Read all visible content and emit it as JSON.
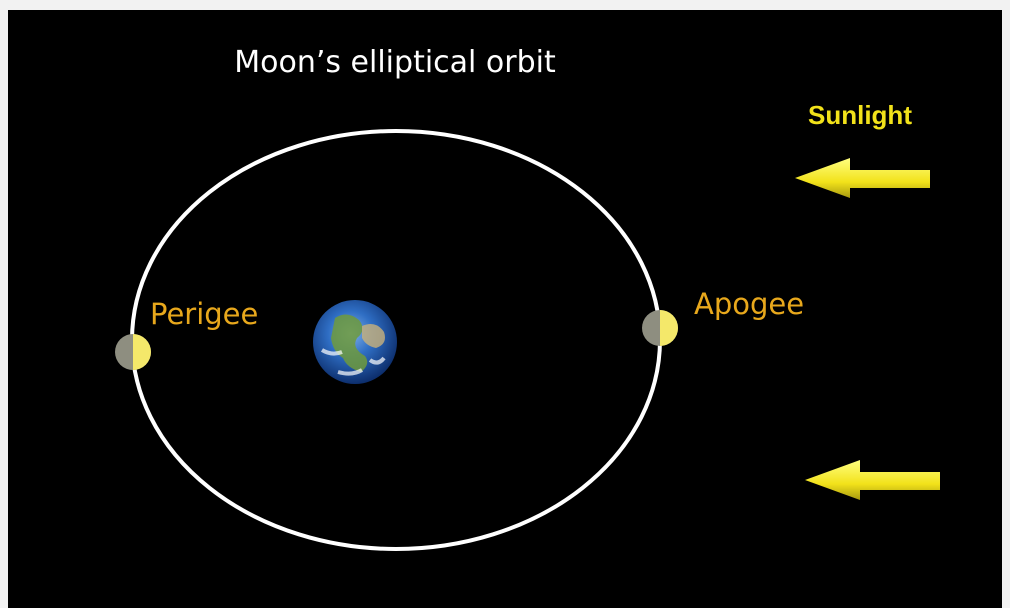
{
  "title": "Moon’s elliptical orbit",
  "labels": {
    "perigee": "Perigee",
    "apogee": "Apogee",
    "sunlight": "Sunlight"
  }
}
